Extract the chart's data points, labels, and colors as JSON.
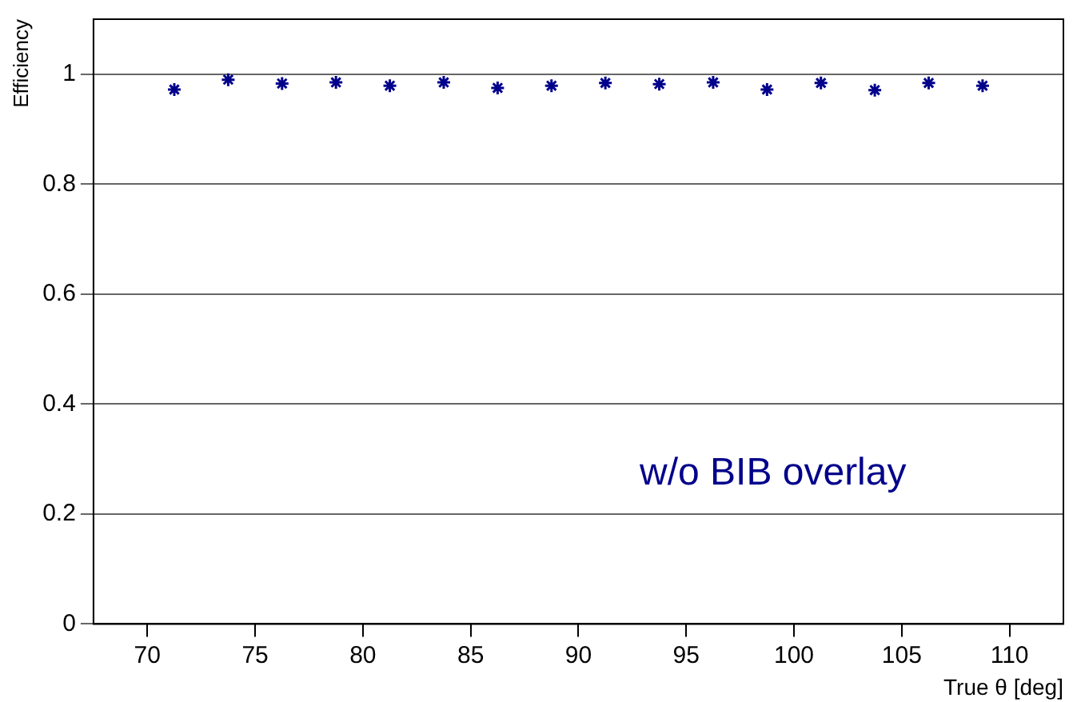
{
  "chart_data": {
    "type": "scatter",
    "xlabel": "True θ [deg]",
    "ylabel": "Efficiency",
    "x": [
      71.25,
      73.75,
      76.25,
      78.75,
      81.25,
      83.75,
      86.25,
      88.75,
      91.25,
      93.75,
      96.25,
      98.75,
      101.25,
      103.75,
      106.25,
      108.75
    ],
    "series": [
      {
        "color": "#00008b",
        "values": [
          0.972,
          0.99,
          0.983,
          0.985,
          0.979,
          0.985,
          0.975,
          0.979,
          0.984,
          0.982,
          0.985,
          0.972,
          0.984,
          0.971,
          0.984,
          0.979
        ]
      }
    ],
    "xlim": [
      67.5,
      112.5
    ],
    "xticks": [
      70,
      75,
      80,
      85,
      90,
      95,
      100,
      105,
      110
    ],
    "ylim": [
      0,
      1.1
    ],
    "yticks": [
      0,
      0.2,
      0.4,
      0.6,
      0.8,
      1
    ],
    "grid": "y",
    "marker": "cross",
    "legend": false,
    "annotations": [
      "w/o BIB overlay"
    ]
  }
}
